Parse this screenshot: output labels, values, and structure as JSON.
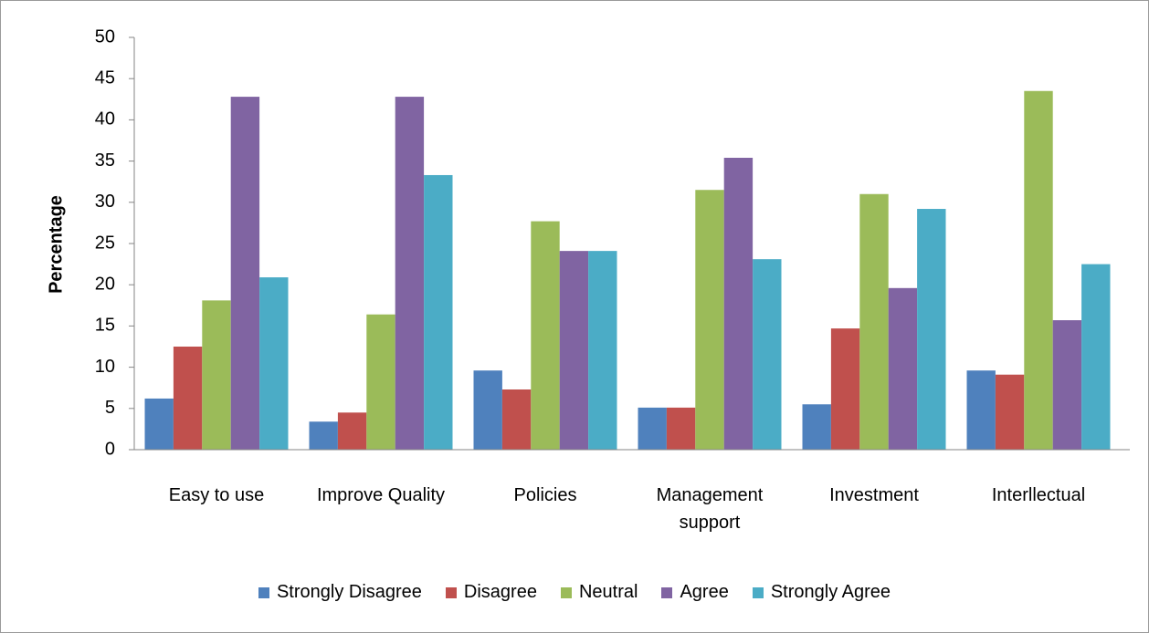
{
  "chart_data": {
    "type": "bar",
    "y_label": "Percentage",
    "categories": [
      "Easy to use",
      "Improve Quality",
      "Policies",
      "Management support",
      "Investment",
      "Interllectual"
    ],
    "series": [
      {
        "name": "Strongly Disagree",
        "color": "#4f81bd",
        "values": [
          6.2,
          3.4,
          9.6,
          5.1,
          5.5,
          9.6
        ]
      },
      {
        "name": "Disagree",
        "color": "#c0504d",
        "values": [
          12.5,
          4.5,
          7.3,
          5.1,
          14.7,
          9.1
        ]
      },
      {
        "name": "Neutral",
        "color": "#9bbb59",
        "values": [
          18.1,
          16.4,
          27.7,
          31.5,
          31.0,
          43.5
        ]
      },
      {
        "name": "Agree",
        "color": "#8064a2",
        "values": [
          42.8,
          42.8,
          24.1,
          35.4,
          19.6,
          15.7
        ]
      },
      {
        "name": "Strongly Agree",
        "color": "#4bacc6",
        "values": [
          20.9,
          33.3,
          24.1,
          23.1,
          29.2,
          22.5
        ]
      }
    ],
    "ylim": [
      0,
      50
    ],
    "yticks": [
      0,
      5,
      10,
      15,
      20,
      25,
      30,
      35,
      40,
      45,
      50
    ],
    "legend": "bottom",
    "grid": false
  }
}
